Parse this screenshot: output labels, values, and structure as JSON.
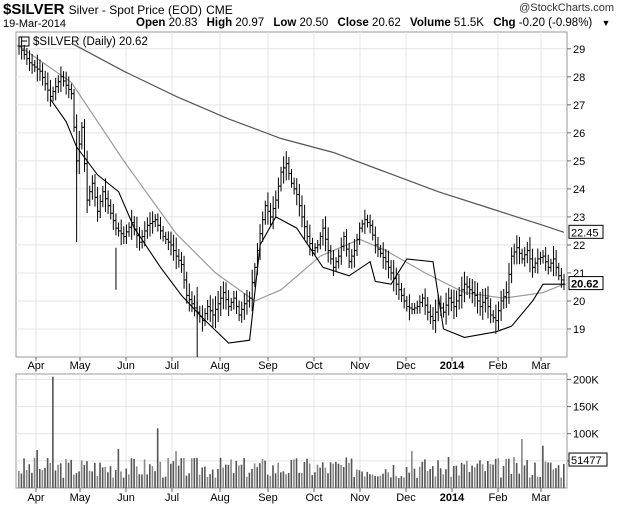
{
  "header": {
    "symbol": "$SILVER",
    "description": "Silver - Spot Price (EOD)",
    "exchange": "CME",
    "watermark": "@StockCharts.com",
    "date": "19-Mar-2014",
    "open_label": "Open",
    "open": "20.83",
    "high_label": "High",
    "high": "20.97",
    "low_label": "Low",
    "low": "20.50",
    "close_label": "Close",
    "close": "20.62",
    "volume_label": "Volume",
    "volume": "51.5K",
    "chg_label": "Chg",
    "chg": "-0.20 (-0.98%)",
    "menu_icon": "triangle-down-icon"
  },
  "legend": {
    "text": "$SILVER (Daily) 20.62"
  },
  "chart_data": [
    {
      "type": "ohlc",
      "title": "$SILVER (Daily) 20.62",
      "ylim": [
        18,
        29.6
      ],
      "y_ticks": [
        19,
        20,
        21,
        22,
        23,
        24,
        25,
        26,
        27,
        28,
        29
      ],
      "x_tick_labels": [
        "Apr",
        "May",
        "Jun",
        "Jul",
        "Aug",
        "Sep",
        "Oct",
        "Nov",
        "Dec",
        "2014",
        "Feb",
        "Mar"
      ],
      "price_tag": "20.62",
      "ma_tag": "22.45",
      "colors": {
        "bars": "#000000",
        "ma_long": "#555555",
        "ma_short": "#9a9a9a",
        "support": "#000000"
      },
      "grid": true,
      "price_path": [
        [
          0,
          29.1
        ],
        [
          4,
          28.5
        ],
        [
          8,
          28.2
        ],
        [
          12,
          27.3
        ],
        [
          16,
          28.0
        ],
        [
          20,
          27.4
        ],
        [
          22,
          25.0
        ],
        [
          24,
          26.2
        ],
        [
          26,
          23.6
        ],
        [
          28,
          24.2
        ],
        [
          30,
          23.2
        ],
        [
          32,
          23.9
        ],
        [
          34,
          23.4
        ],
        [
          37,
          22.6
        ],
        [
          40,
          22.3
        ],
        [
          43,
          22.8
        ],
        [
          46,
          22.1
        ],
        [
          49,
          22.7
        ],
        [
          52,
          22.9
        ],
        [
          55,
          22.3
        ],
        [
          58,
          22.0
        ],
        [
          60,
          21.6
        ],
        [
          62,
          21.3
        ],
        [
          64,
          20.2
        ],
        [
          66,
          19.9
        ],
        [
          68,
          19.6
        ],
        [
          70,
          19.3
        ],
        [
          72,
          19.8
        ],
        [
          74,
          19.5
        ],
        [
          76,
          19.9
        ],
        [
          78,
          20.3
        ],
        [
          80,
          19.8
        ],
        [
          82,
          20.1
        ],
        [
          84,
          19.5
        ],
        [
          86,
          19.9
        ],
        [
          88,
          20.1
        ],
        [
          90,
          21.2
        ],
        [
          92,
          22.4
        ],
        [
          94,
          23.4
        ],
        [
          96,
          23.0
        ],
        [
          98,
          23.6
        ],
        [
          100,
          24.6
        ],
        [
          102,
          24.9
        ],
        [
          104,
          24.2
        ],
        [
          106,
          23.8
        ],
        [
          108,
          23.0
        ],
        [
          110,
          22.3
        ],
        [
          112,
          21.8
        ],
        [
          114,
          22.0
        ],
        [
          116,
          22.6
        ],
        [
          118,
          21.8
        ],
        [
          120,
          21.2
        ],
        [
          122,
          21.6
        ],
        [
          124,
          22.3
        ],
        [
          126,
          21.4
        ],
        [
          128,
          21.8
        ],
        [
          130,
          22.6
        ],
        [
          132,
          22.9
        ],
        [
          134,
          22.7
        ],
        [
          136,
          22.0
        ],
        [
          138,
          21.7
        ],
        [
          140,
          21.4
        ],
        [
          142,
          21.0
        ],
        [
          144,
          20.6
        ],
        [
          146,
          20.2
        ],
        [
          148,
          19.8
        ],
        [
          150,
          19.7
        ],
        [
          152,
          19.8
        ],
        [
          154,
          20.1
        ],
        [
          156,
          19.6
        ],
        [
          158,
          19.3
        ],
        [
          160,
          19.9
        ],
        [
          162,
          19.6
        ],
        [
          164,
          20.1
        ],
        [
          166,
          19.8
        ],
        [
          168,
          20.2
        ],
        [
          170,
          20.6
        ],
        [
          172,
          20.4
        ],
        [
          174,
          20.2
        ],
        [
          176,
          19.8
        ],
        [
          178,
          20.1
        ],
        [
          180,
          19.5
        ],
        [
          182,
          19.3
        ],
        [
          184,
          20.0
        ],
        [
          186,
          20.3
        ],
        [
          188,
          21.6
        ],
        [
          190,
          21.9
        ],
        [
          192,
          21.5
        ],
        [
          194,
          21.8
        ],
        [
          196,
          21.2
        ],
        [
          198,
          21.5
        ],
        [
          200,
          21.6
        ],
        [
          202,
          21.2
        ],
        [
          204,
          21.5
        ],
        [
          206,
          20.9
        ],
        [
          208,
          20.6
        ]
      ],
      "ma_long_path": [
        [
          20,
          29.2
        ],
        [
          40,
          28.2
        ],
        [
          60,
          27.3
        ],
        [
          80,
          26.5
        ],
        [
          100,
          25.8
        ],
        [
          120,
          25.3
        ],
        [
          140,
          24.6
        ],
        [
          160,
          23.9
        ],
        [
          180,
          23.3
        ],
        [
          200,
          22.7
        ],
        [
          208,
          22.45
        ]
      ],
      "ma_short_path": [
        [
          0,
          29.1
        ],
        [
          20,
          27.8
        ],
        [
          40,
          25.0
        ],
        [
          60,
          22.4
        ],
        [
          75,
          21.0
        ],
        [
          90,
          20.0
        ],
        [
          100,
          20.4
        ],
        [
          115,
          21.6
        ],
        [
          130,
          22.2
        ],
        [
          140,
          21.8
        ],
        [
          155,
          21.0
        ],
        [
          170,
          20.3
        ],
        [
          185,
          20.1
        ],
        [
          200,
          20.3
        ],
        [
          208,
          20.6
        ]
      ],
      "support_path": [
        [
          12,
          27.2
        ],
        [
          18,
          26.4
        ],
        [
          22,
          25.5
        ],
        [
          30,
          24.5
        ],
        [
          38,
          23.9
        ],
        [
          44,
          22.6
        ],
        [
          54,
          21.2
        ],
        [
          62,
          20.2
        ],
        [
          70,
          19.4
        ],
        [
          80,
          18.5
        ],
        [
          88,
          18.6
        ],
        [
          92,
          22.0
        ],
        [
          98,
          23.0
        ],
        [
          106,
          22.6
        ],
        [
          116,
          21.2
        ],
        [
          126,
          20.9
        ],
        [
          134,
          21.4
        ],
        [
          136,
          20.7
        ],
        [
          142,
          20.6
        ],
        [
          148,
          21.5
        ],
        [
          158,
          21.4
        ],
        [
          162,
          19.0
        ],
        [
          170,
          18.7
        ],
        [
          182,
          18.9
        ],
        [
          188,
          19.1
        ],
        [
          196,
          20.0
        ],
        [
          200,
          20.6
        ],
        [
          208,
          20.6
        ]
      ]
    },
    {
      "type": "bar",
      "title": "",
      "ylim": [
        0,
        210
      ],
      "y_ticks": [
        50,
        100,
        150,
        200
      ],
      "y_tick_labels": [
        "",
        "100K",
        "150K",
        "200K"
      ],
      "y_unit": "K",
      "latest_tag": "51477",
      "spikes": [
        {
          "day": 13,
          "value": 205
        },
        {
          "day": 53,
          "value": 110
        },
        {
          "day": 7,
          "value": 70
        },
        {
          "day": 38,
          "value": 72
        },
        {
          "day": 60,
          "value": 68
        },
        {
          "day": 150,
          "value": 68
        },
        {
          "day": 192,
          "value": 90
        },
        {
          "day": 200,
          "value": 78
        }
      ],
      "base_level": 52,
      "colors": {
        "bars": "#555555"
      }
    }
  ]
}
